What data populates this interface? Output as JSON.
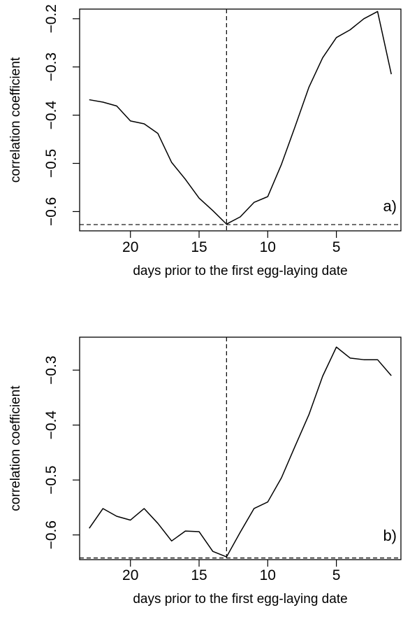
{
  "chart_data": [
    {
      "type": "line",
      "panel_label": "a)",
      "xlabel": "days prior to the first egg-laying date",
      "ylabel": "correlation coefficient",
      "x_reversed": true,
      "xlim": [
        0.3,
        23.7
      ],
      "ylim": [
        -0.64,
        -0.18
      ],
      "xticks": [
        20,
        15,
        10,
        5
      ],
      "yticks": [
        -0.6,
        -0.5,
        -0.4,
        -0.3,
        -0.2
      ],
      "ytick_labels": [
        "−0.6",
        "−0.5",
        "−0.4",
        "−0.3",
        "−0.2"
      ],
      "reference_lines": {
        "vertical_x": 13,
        "horizontal_y": -0.627
      },
      "series": [
        {
          "x": [
            23,
            22,
            21,
            20,
            19,
            18,
            17,
            16,
            15,
            14,
            13,
            12,
            11,
            10,
            9,
            8,
            7,
            6,
            5,
            4,
            3,
            2,
            1
          ],
          "values": [
            -0.368,
            -0.373,
            -0.381,
            -0.412,
            -0.418,
            -0.438,
            -0.498,
            -0.533,
            -0.572,
            -0.598,
            -0.626,
            -0.611,
            -0.581,
            -0.569,
            -0.502,
            -0.423,
            -0.342,
            -0.281,
            -0.239,
            -0.223,
            -0.2,
            -0.185,
            -0.315
          ]
        }
      ]
    },
    {
      "type": "line",
      "panel_label": "b)",
      "xlabel": "days prior to the first egg-laying date",
      "ylabel": "correlation coefficient",
      "x_reversed": true,
      "xlim": [
        0.3,
        23.7
      ],
      "ylim": [
        -0.645,
        -0.24
      ],
      "xticks": [
        20,
        15,
        10,
        5
      ],
      "yticks": [
        -0.6,
        -0.5,
        -0.4,
        -0.3
      ],
      "ytick_labels": [
        "−0.6",
        "−0.5",
        "−0.4",
        "−0.3"
      ],
      "reference_lines": {
        "vertical_x": 13,
        "horizontal_y": -0.642
      },
      "series": [
        {
          "x": [
            23,
            22,
            21,
            20,
            19,
            18,
            17,
            16,
            15,
            14,
            13,
            12,
            11,
            10,
            9,
            8,
            7,
            6,
            5,
            4,
            3,
            2,
            1
          ],
          "values": [
            -0.588,
            -0.552,
            -0.566,
            -0.573,
            -0.552,
            -0.579,
            -0.611,
            -0.593,
            -0.594,
            -0.63,
            -0.64,
            -0.595,
            -0.552,
            -0.54,
            -0.496,
            -0.438,
            -0.381,
            -0.311,
            -0.258,
            -0.278,
            -0.281,
            -0.281,
            -0.31
          ]
        }
      ]
    }
  ]
}
